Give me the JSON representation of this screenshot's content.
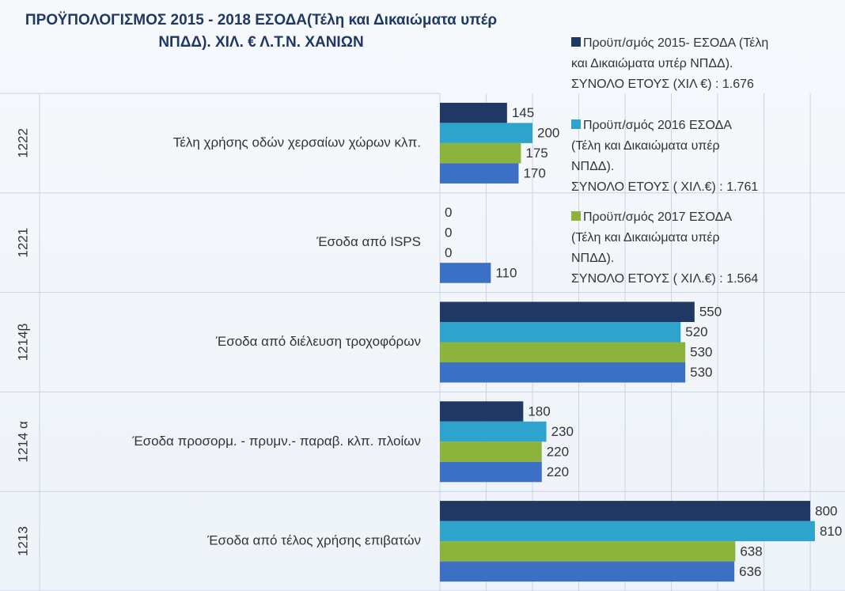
{
  "chart_data": {
    "type": "hbar",
    "title": "ΠΡΟΫΠΟΛΟΓΙΣΜΟΣ 2015 -  2018 ΕΣΟΔΑ(Τέλη  και Δικαιώματα υπέρ\nΝΠΔΔ).  ΧΙΛ. € Λ.Τ.Ν. ΧΑΝΙΩΝ",
    "codes": [
      "1222",
      "1221",
      "1214β",
      "1214 α",
      "1213"
    ],
    "categories": [
      "Τέλη χρήσης οδών χερσαίων χώρων κλπ.",
      "Έσοδα από ISPS",
      "Έσοδα από διέλευση τροχοφόρων",
      "Έσοδα προσορμ. - πρυμν.- παραβ.  κλπ. πλοίων",
      "Έσοδα από τέλος χρήσης επιβατών"
    ],
    "series": [
      {
        "name": "Προϋπ/σμός 2015- ΕΣΟΔΑ (Τέλη\nκαι Δικαιώματα υπέρ ΝΠΔΔ).\nΣΥΝΟΛΟ ΕΤΟΥΣ  (ΧΙΛ €) : 1.676",
        "color": "#1f3864",
        "values": [
          145,
          0,
          550,
          180,
          800
        ]
      },
      {
        "name": "Προϋπ/σμός 2016  ΕΣΟΔΑ\n(Τέλη  και Δικαιώματα υπέρ\nΝΠΔΔ).\n ΣΥΝΟΛΟ ΕΤΟΥΣ ( ΧΙΛ.€)  :  1.761",
        "color": "#2ea3cc",
        "values": [
          200,
          0,
          520,
          230,
          810
        ]
      },
      {
        "name": "Προϋπ/σμός 2017 ΕΣΟΔΑ\n(Τέλη  και Δικαιώματα υπέρ\nΝΠΔΔ).\nΣΥΝΟΛΟ ΕΤΟΥΣ ( ΧΙΛ.€)  :  1.564",
        "color": "#8cb43c",
        "values": [
          175,
          0,
          530,
          220,
          638
        ]
      },
      {
        "name": null,
        "color": "#3b70c4",
        "values": [
          170,
          110,
          530,
          220,
          636
        ]
      }
    ],
    "xlim": [
      0,
      875
    ],
    "xticks": [
      0,
      100,
      200,
      300,
      400,
      500,
      600,
      700,
      800
    ],
    "grid": true
  }
}
